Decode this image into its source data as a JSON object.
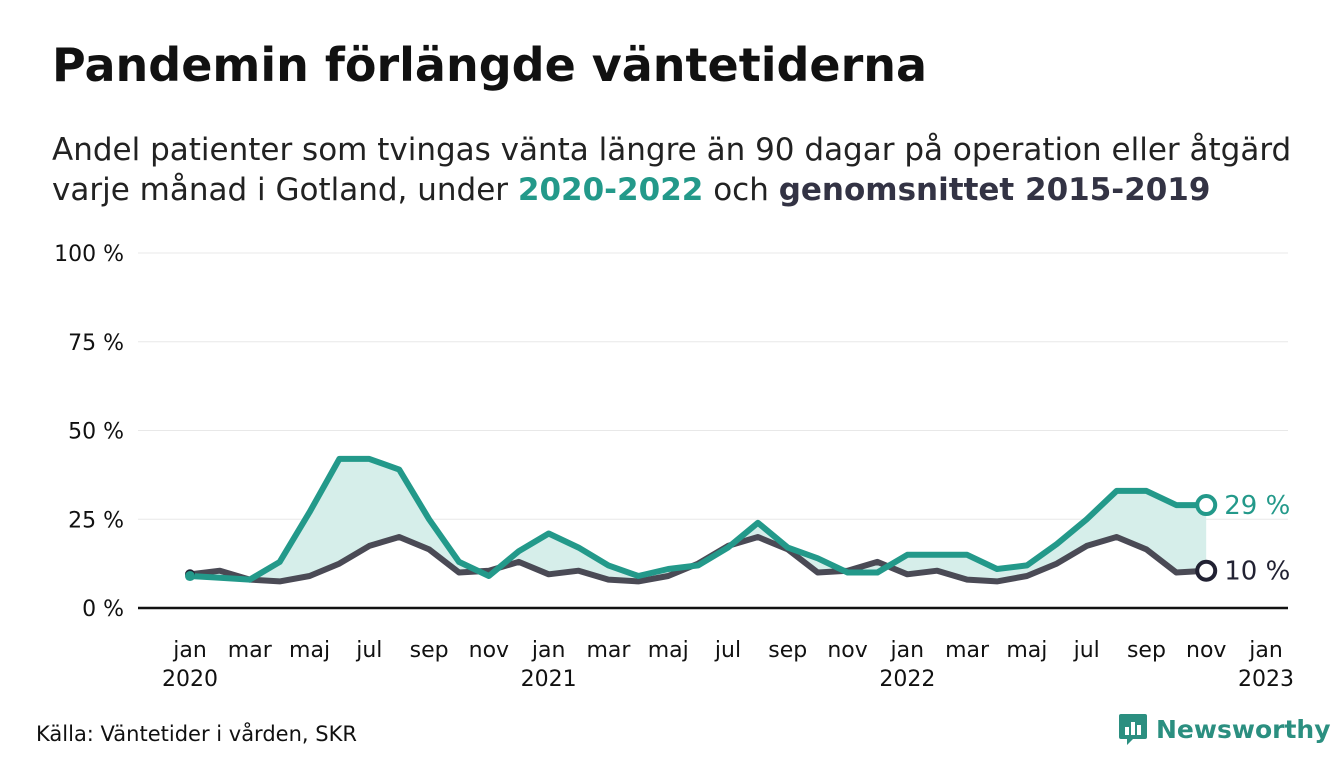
{
  "title": "Pandemin förlängde väntetiderna",
  "subtitle": {
    "line1": "Andel patienter som tvingas vänta längre än 90 dagar på operation eller åtgärd",
    "line2_prefix": "varje månad i Gotland, under ",
    "line2_current": "2020-2022",
    "line2_mid": " och ",
    "line2_avg": "genomsnittet 2015-2019"
  },
  "source": "Källa: Väntetider i vården, SKR",
  "brand": "Newsworthy",
  "colors": {
    "current": "#23998a",
    "average": "#4a4a55",
    "fill": "#d6eeea",
    "axis": "#111111",
    "grid": "#e8e8e8"
  },
  "chart_data": {
    "type": "line",
    "ylim": [
      0,
      100
    ],
    "y_ticks": [
      "0 %",
      "25 %",
      "50 %",
      "75 %",
      "100 %"
    ],
    "y_tick_values": [
      0,
      25,
      50,
      75,
      100
    ],
    "x_ticks": [
      {
        "label": "jan",
        "year": "2020",
        "index": 0
      },
      {
        "label": "mar",
        "year": "",
        "index": 2
      },
      {
        "label": "maj",
        "year": "",
        "index": 4
      },
      {
        "label": "jul",
        "year": "",
        "index": 6
      },
      {
        "label": "sep",
        "year": "",
        "index": 8
      },
      {
        "label": "nov",
        "year": "",
        "index": 10
      },
      {
        "label": "jan",
        "year": "2021",
        "index": 12
      },
      {
        "label": "mar",
        "year": "",
        "index": 14
      },
      {
        "label": "maj",
        "year": "",
        "index": 16
      },
      {
        "label": "jul",
        "year": "",
        "index": 18
      },
      {
        "label": "sep",
        "year": "",
        "index": 20
      },
      {
        "label": "nov",
        "year": "",
        "index": 22
      },
      {
        "label": "jan",
        "year": "2022",
        "index": 24
      },
      {
        "label": "mar",
        "year": "",
        "index": 26
      },
      {
        "label": "maj",
        "year": "",
        "index": 28
      },
      {
        "label": "jul",
        "year": "",
        "index": 30
      },
      {
        "label": "sep",
        "year": "",
        "index": 32
      },
      {
        "label": "nov",
        "year": "",
        "index": 34
      },
      {
        "label": "jan",
        "year": "2023",
        "index": 36
      }
    ],
    "series": [
      {
        "key": "current",
        "values": [
          9,
          8.5,
          8,
          13,
          27,
          42,
          42,
          39,
          25,
          13,
          9,
          16,
          21,
          17,
          12,
          9,
          11,
          12,
          17,
          24,
          17,
          14,
          10,
          10,
          15,
          15,
          15,
          11,
          12,
          18,
          25,
          33,
          33,
          29,
          29
        ],
        "end_label": "29 %"
      },
      {
        "key": "average",
        "values": [
          9.5,
          10.5,
          8,
          7.5,
          9,
          12.5,
          17.5,
          20,
          16.5,
          10,
          10.5,
          13,
          9.5,
          10.5,
          8,
          7.5,
          9,
          12.5,
          17.5,
          20,
          16.5,
          10,
          10.5,
          13,
          9.5,
          10.5,
          8,
          7.5,
          9,
          12.5,
          17.5,
          20,
          16.5,
          10,
          10.5
        ],
        "end_label": "10 %"
      }
    ]
  }
}
